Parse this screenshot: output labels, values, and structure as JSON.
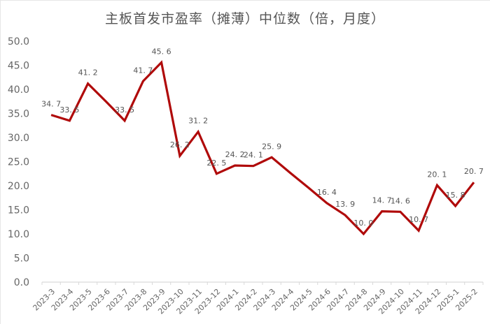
{
  "title": "主板首发市盈率（摊薄）中位数（倍，月度）",
  "colors": {
    "line": "#b00a0a",
    "axis": "#d9d9d9",
    "text": "#555555"
  },
  "chart_data": {
    "type": "line",
    "title": "主板首发市盈率（摊薄）中位数（倍，月度）",
    "xlabel": "",
    "ylabel": "",
    "ylim": [
      0,
      50
    ],
    "yticks": [
      "0.0",
      "5.0",
      "10.0",
      "15.0",
      "20.0",
      "25.0",
      "30.0",
      "35.0",
      "40.0",
      "45.0",
      "50.0"
    ],
    "grid": false,
    "legend": null,
    "categories": [
      "2023-3",
      "2023-4",
      "2023-5",
      "2023-6",
      "2023-7",
      "2023-8",
      "2023-9",
      "2023-10",
      "2023-11",
      "2023-12",
      "2024-1",
      "2024-2",
      "2024-3",
      "2024-4",
      "2024-5",
      "2024-6",
      "2024-7",
      "2024-8",
      "2024-9",
      "2024-10",
      "2024-11",
      "2024-12",
      "2025-1",
      "2025-2"
    ],
    "series": [
      {
        "name": "主板首发市盈率（摊薄）中位数",
        "values": [
          34.7,
          33.5,
          41.2,
          37.4,
          33.5,
          41.7,
          45.6,
          26.2,
          31.2,
          22.5,
          24.2,
          24.1,
          25.9,
          22.7,
          19.6,
          16.4,
          13.9,
          10.0,
          14.7,
          14.6,
          10.7,
          20.1,
          15.8,
          20.7
        ],
        "labels": [
          "34.7",
          "33.5",
          "41.2",
          "",
          "33.5",
          "41.7",
          "45.6",
          "26.2",
          "31.2",
          "22.5",
          "24.2",
          "24.1",
          "25.9",
          "",
          "",
          "16.4",
          "13.9",
          "10.0",
          "14.7",
          "14.6",
          "10.7",
          "20.1",
          "15.8",
          "20.7"
        ]
      }
    ]
  }
}
